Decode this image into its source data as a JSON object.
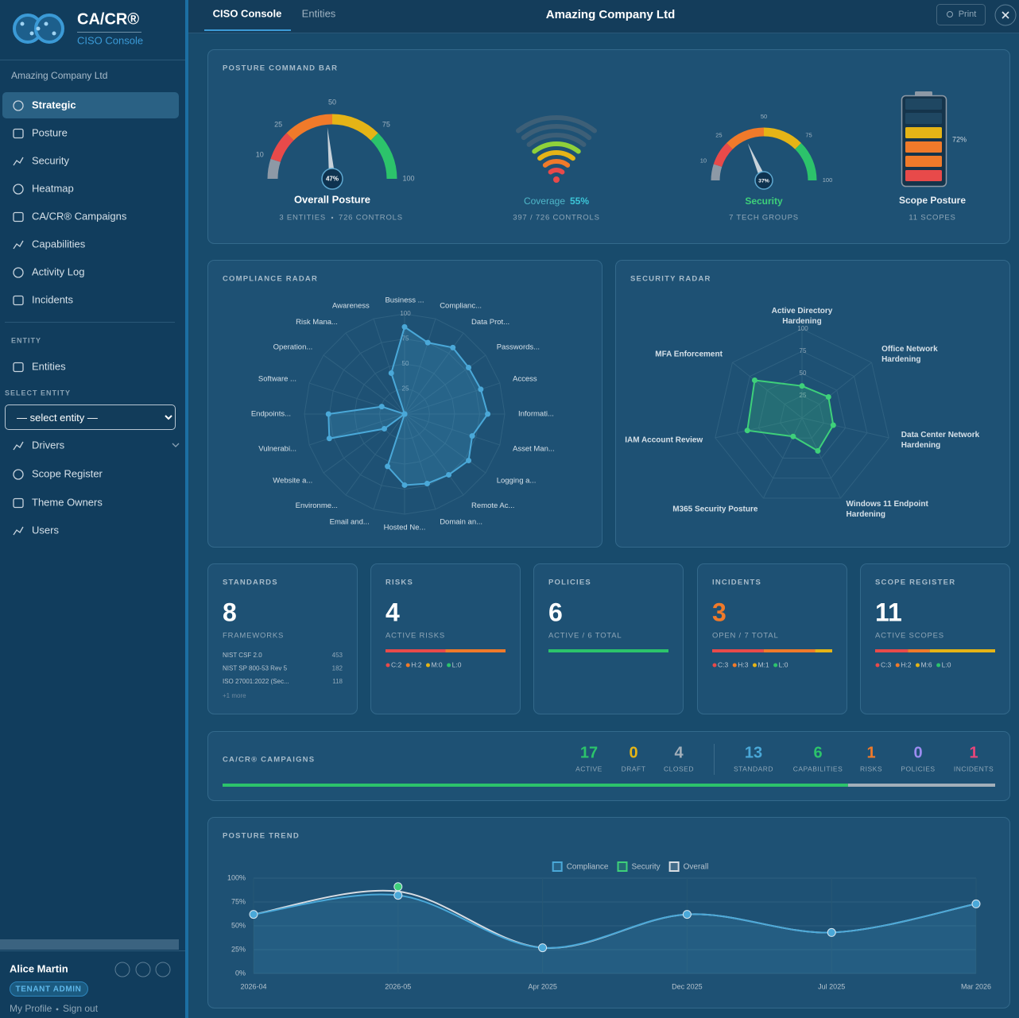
{
  "sidebar": {
    "brand": "CA/CR®",
    "console": "CISO Console",
    "company": "Amazing Company Ltd",
    "nav": [
      {
        "label": "Strategic",
        "active": true
      },
      {
        "label": "Posture"
      },
      {
        "label": "Security"
      },
      {
        "label": "Heatmap"
      },
      {
        "label": "CA/CR® Campaigns"
      },
      {
        "label": "Capabilities"
      },
      {
        "label": "Activity Log"
      },
      {
        "label": "Incidents"
      }
    ],
    "entity_heading": "ENTITY",
    "entities_link": "Entities",
    "select_heading": "SELECT ENTITY",
    "select_placeholder": "— select entity —",
    "nav2": [
      {
        "label": "Drivers"
      },
      {
        "label": "Scope Register"
      },
      {
        "label": "Theme Owners"
      },
      {
        "label": "Users"
      }
    ],
    "user": {
      "name": "Alice Martin",
      "role": "TENANT ADMIN",
      "profile": "My Profile",
      "signout": "Sign out"
    }
  },
  "topbar": {
    "tabs": [
      {
        "label": "CISO Console",
        "active": true
      },
      {
        "label": "Entities"
      }
    ],
    "title": "Amazing Company Ltd",
    "print": "Print"
  },
  "posture": {
    "heading": "POSTURE COMMAND BAR",
    "overall": {
      "value": 47,
      "value_label": "47%",
      "lim": [
        0,
        100
      ],
      "ticks": [
        10,
        25,
        50,
        75,
        100
      ],
      "band_colors": [
        "#8d99a6",
        "#e84a4a",
        "#f07a2a",
        "#e5b416",
        "#2cc36b"
      ],
      "title": "Overall Posture",
      "details": [
        "3 ENTITIES",
        "726 CONTROLS"
      ]
    },
    "coverage": {
      "label": "Coverage",
      "value": 55,
      "value_label": "55%",
      "details": "397 / 726 CONTROLS",
      "colors": [
        "#e84a4a",
        "#f07a2a",
        "#e5b416",
        "#8fd13a",
        "#2cc36b",
        "#2cc36b",
        "#2cc36b"
      ]
    },
    "security": {
      "value": 37,
      "value_label": "37%",
      "lim": [
        0,
        100
      ],
      "ticks": [
        10,
        25,
        50,
        75,
        100
      ],
      "band_colors": [
        "#8d99a6",
        "#e84a4a",
        "#f07a2a",
        "#e5b416",
        "#2cc36b"
      ],
      "title": "Security",
      "details": "7 TECH GROUPS"
    },
    "scope": {
      "value": 72,
      "value_label": "72%",
      "title": "Scope Posture",
      "details": "11 SCOPES",
      "colors": [
        "#e84a4a",
        "#f07a2a",
        "#f07a2a",
        "#e5b416",
        "#e5b416",
        "#2cc36b"
      ]
    }
  },
  "compliance_radar": {
    "type": "radar",
    "heading": "COMPLIANCE RADAR",
    "axes": [
      "Business ...",
      "Complianc...",
      "Data Prot...",
      "Passwords...",
      "Access",
      "Informati...",
      "Asset Man...",
      "Logging a...",
      "Remote Ac...",
      "Domain an...",
      "Hosted Ne...",
      "Email and...",
      "Environme...",
      "Website a...",
      "Vulnerabi...",
      "Endpoints...",
      "Software ...",
      "Operation...",
      "Risk Mana...",
      "Awareness"
    ],
    "values": [
      87,
      75,
      82,
      79,
      80,
      83,
      71,
      79,
      75,
      73,
      71,
      55,
      0,
      25,
      79,
      76,
      24,
      0,
      0,
      43
    ],
    "rlim": [
      0,
      100
    ],
    "rticks": [
      25,
      50,
      75,
      100
    ],
    "color": "#4aa8d8"
  },
  "security_radar": {
    "type": "radar",
    "heading": "SECURITY RADAR",
    "axes": [
      "Active Directory Hardening",
      "Office Network Hardening",
      "Data Center Network Hardening",
      "Windows 11 Endpoint Hardening",
      "M365 Security Posture",
      "IAM Account Review",
      "MFA Enforcement"
    ],
    "values": [
      36,
      38,
      36,
      41,
      23,
      63,
      68
    ],
    "rlim": [
      0,
      100
    ],
    "rticks": [
      25,
      50,
      75,
      100
    ],
    "color": "#3ed07a"
  },
  "breakdown_colors": [
    "#e84a4a",
    "#f07a2a",
    "#e5b416",
    "#2cc36b"
  ],
  "cards": [
    {
      "heading": "STANDARDS",
      "value": 8,
      "sub": "FRAMEWORKS",
      "items": [
        {
          "name": "NIST CSF 2.0",
          "count": 453
        },
        {
          "name": "NIST SP 800-53 Rev 5",
          "count": 182
        },
        {
          "name": "ISO 27001:2022 (Sec...",
          "count": 118
        }
      ],
      "more": "+1 more"
    },
    {
      "heading": "RISKS",
      "value": 4,
      "sub": "ACTIVE RISKS",
      "breakdown": [
        {
          "value": 2,
          "label": "C:2"
        },
        {
          "value": 2,
          "label": "H:2"
        },
        {
          "value": 0,
          "label": "M:0"
        },
        {
          "value": 0,
          "label": "L:0"
        }
      ]
    },
    {
      "heading": "POLICIES",
      "value": 6,
      "sub": "ACTIVE / 6 TOTAL",
      "bar_color": "#2cc36b"
    },
    {
      "heading": "INCIDENTS",
      "value": 3,
      "color": "#f07a2a",
      "sub": "OPEN / 7 TOTAL",
      "breakdown": [
        {
          "value": 3,
          "label": "C:3"
        },
        {
          "value": 3,
          "label": "H:3"
        },
        {
          "value": 1,
          "label": "M:1"
        },
        {
          "value": 0,
          "label": "L:0"
        }
      ]
    },
    {
      "heading": "SCOPE REGISTER",
      "value": 11,
      "sub": "ACTIVE SCOPES",
      "breakdown": [
        {
          "value": 3,
          "label": "C:3"
        },
        {
          "value": 2,
          "label": "H:2"
        },
        {
          "value": 6,
          "label": "M:6"
        },
        {
          "value": 0,
          "label": "L:0"
        }
      ]
    }
  ],
  "campaigns": {
    "heading": "CA/CR® CAMPAIGNS",
    "groups": [
      [
        {
          "label": "ACTIVE",
          "value": 17,
          "color": "#2cc36b"
        },
        {
          "label": "DRAFT",
          "value": 0,
          "color": "#e5b416"
        },
        {
          "label": "CLOSED",
          "value": 4,
          "color": "#a3afba"
        }
      ],
      [
        {
          "label": "STANDARD",
          "value": 13,
          "color": "#4aa8d8"
        },
        {
          "label": "CAPABILITIES",
          "value": 6,
          "color": "#2cc36b"
        },
        {
          "label": "RISKS",
          "value": 1,
          "color": "#f07a2a"
        },
        {
          "label": "POLICIES",
          "value": 0,
          "color": "#9b8cf0"
        },
        {
          "label": "INCIDENTS",
          "value": 1,
          "color": "#e8457a"
        }
      ]
    ]
  },
  "trend": {
    "type": "line",
    "heading": "POSTURE TREND",
    "categories": [
      "2026-04",
      "2026-05",
      "Apr 2025",
      "Dec 2025",
      "Jul 2025",
      "Mar 2026"
    ],
    "series": [
      {
        "name": "Compliance",
        "color": "#4aa8d8",
        "values": [
          62,
          82,
          27,
          62,
          43,
          73
        ]
      },
      {
        "name": "Security",
        "color": "#3ed07a",
        "values": [
          null,
          91,
          null,
          null,
          null,
          null
        ]
      },
      {
        "name": "Overall",
        "color": "#d8dde3",
        "values": [
          62,
          86,
          27,
          62,
          43,
          73
        ]
      }
    ],
    "ylim": [
      0,
      100
    ],
    "yticks": [
      {
        "value": 0,
        "label": "0%"
      },
      {
        "value": 25,
        "label": "25%"
      },
      {
        "value": 50,
        "label": "50%"
      },
      {
        "value": 75,
        "label": "75%"
      },
      {
        "value": 100,
        "label": "100%"
      }
    ],
    "grid": true
  }
}
